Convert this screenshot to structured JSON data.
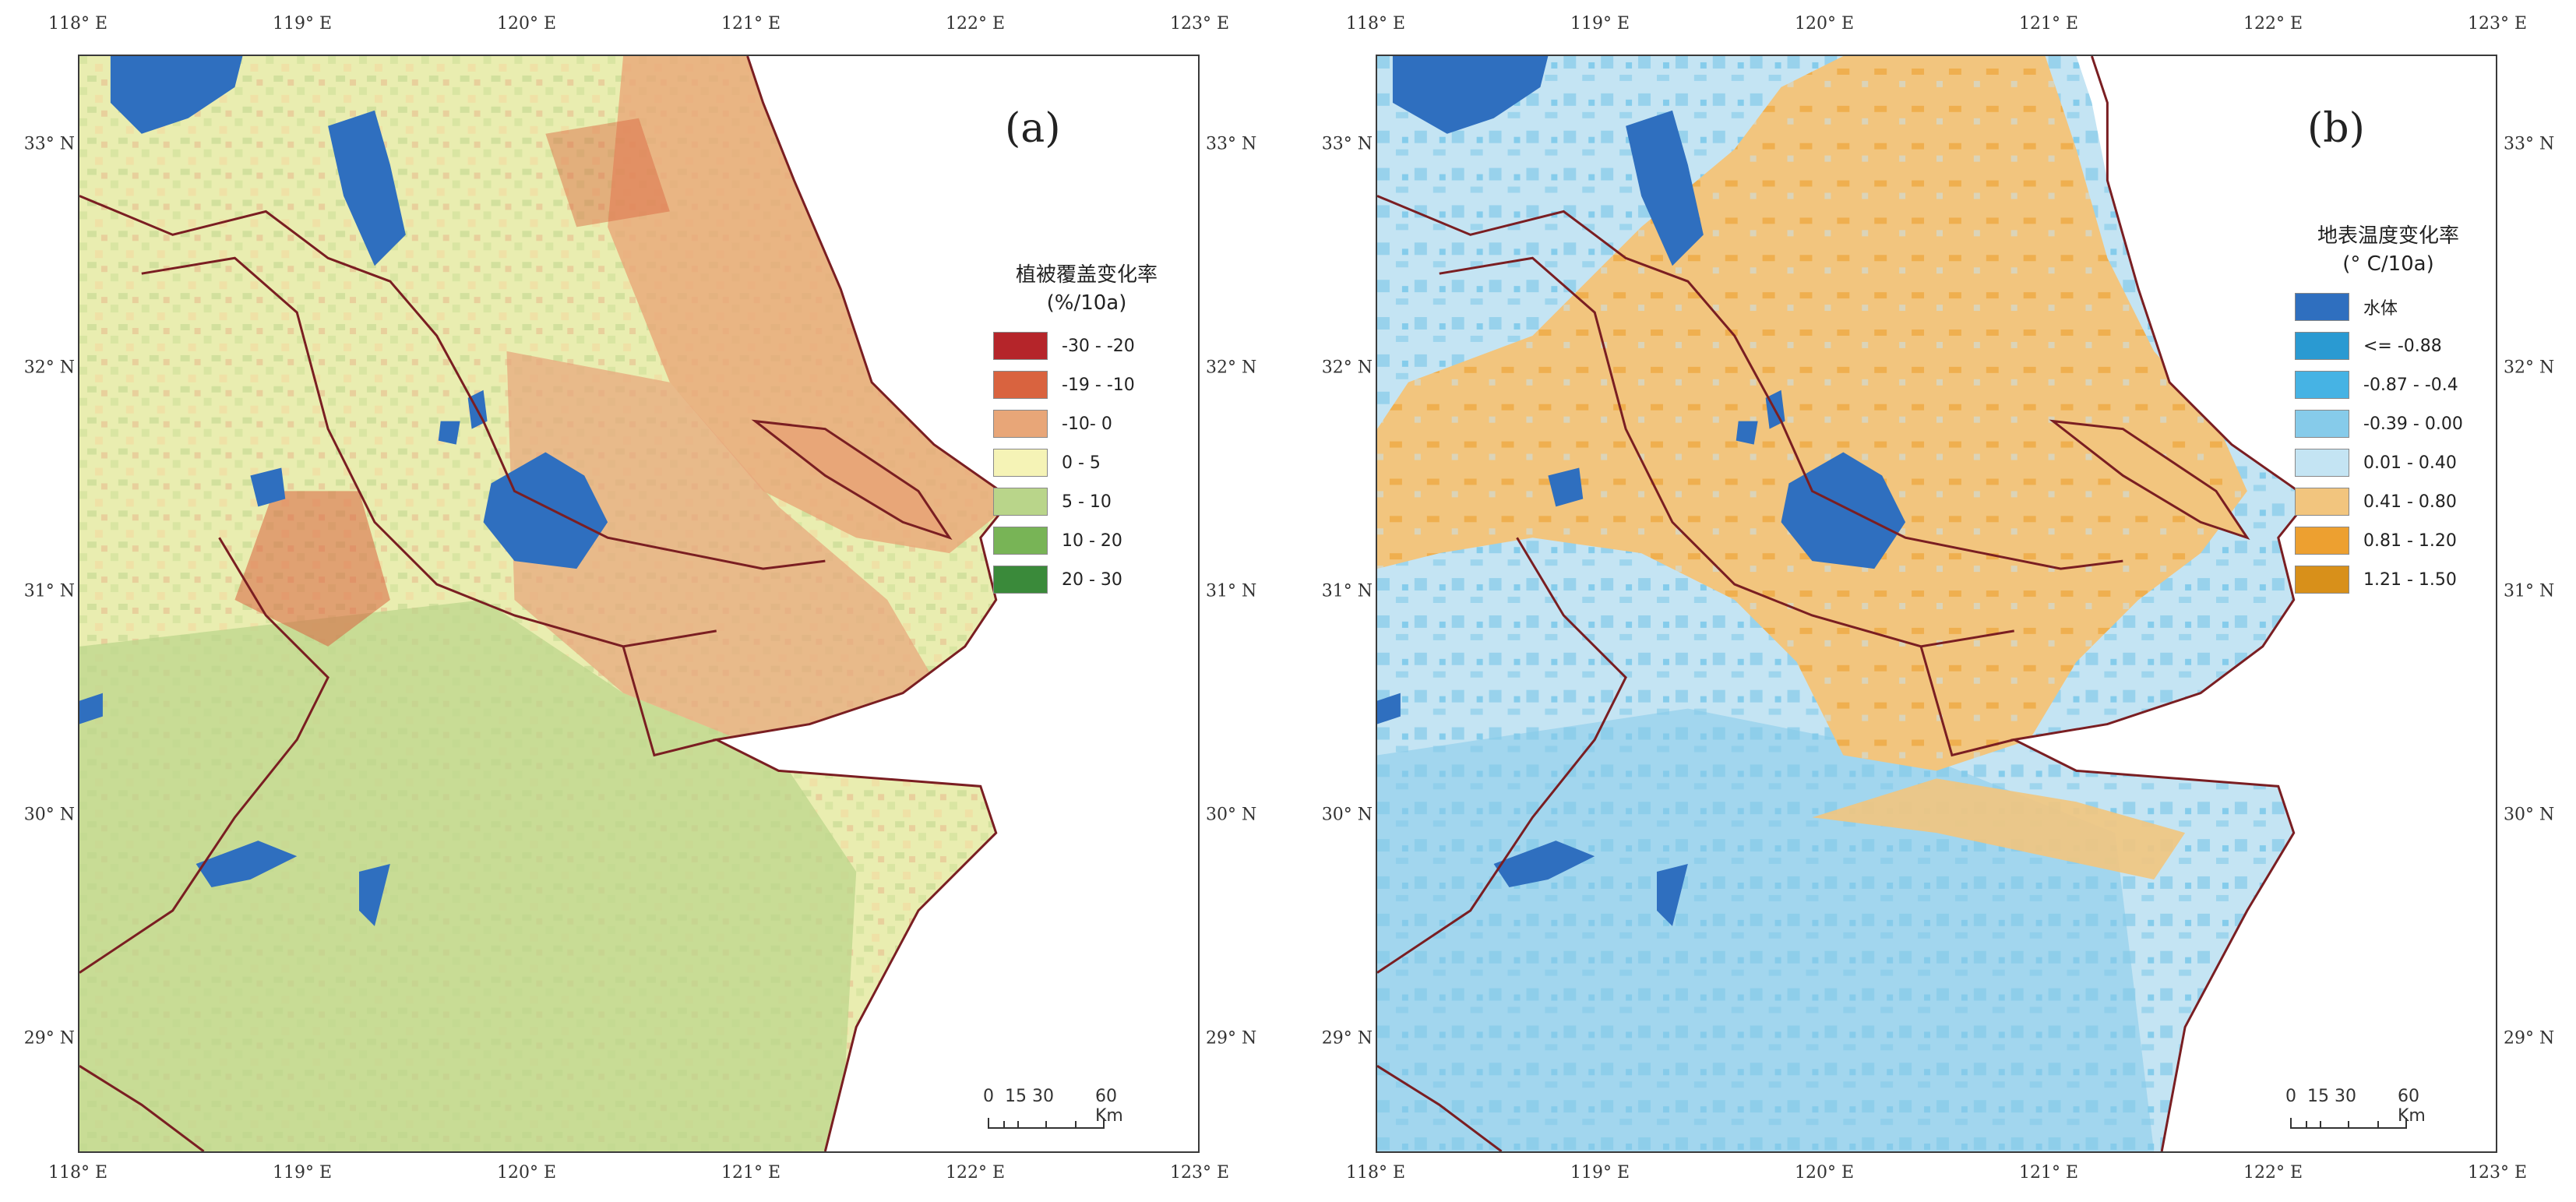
{
  "lon_labels": [
    "118° E",
    "119° E",
    "120° E",
    "121° E",
    "122° E",
    "123° E"
  ],
  "lat_labels": [
    "33° N",
    "32° N",
    "31° N",
    "30° N",
    "29° N"
  ],
  "panels": [
    {
      "label": "(a)",
      "legend": {
        "title_line1": "植被覆盖变化率",
        "title_line2": "(%/10a)",
        "items": [
          {
            "label": "-30 - -20",
            "color": "#b5252a"
          },
          {
            "label": "-19 - -10",
            "color": "#d9633f"
          },
          {
            "label": "-10- 0",
            "color": "#e8a678"
          },
          {
            "label": "0 - 5",
            "color": "#f5f3b6"
          },
          {
            "label": "5 - 10",
            "color": "#b9d58a"
          },
          {
            "label": "10 - 20",
            "color": "#78b456"
          },
          {
            "label": "20 - 30",
            "color": "#3a8a3a"
          }
        ]
      },
      "scalebar": {
        "l0": "0",
        "l1": "15 30",
        "l2": "60 Km"
      }
    },
    {
      "label": "(b)",
      "legend": {
        "title_line1": "地表温度变化率",
        "title_line2": "(° C/10a)",
        "items": [
          {
            "label": "水体",
            "color": "#2f6fbf"
          },
          {
            "label": "<= -0.88",
            "color": "#2a9ad2"
          },
          {
            "label": "-0.87 - -0.4",
            "color": "#46b3e4"
          },
          {
            "label": "-0.39 - 0.00",
            "color": "#86cbea"
          },
          {
            "label": "0.01 - 0.40",
            "color": "#c4e4f3"
          },
          {
            "label": "0.41 - 0.80",
            "color": "#f2c57e"
          },
          {
            "label": "0.81 - 1.20",
            "color": "#eda030"
          },
          {
            "label": "1.21 - 1.50",
            "color": "#d8901a"
          }
        ]
      },
      "scalebar": {
        "l0": "0",
        "l1": "15 30",
        "l2": "60 Km"
      }
    }
  ],
  "colors": {
    "water": "#2f6fbf",
    "boundary": "#7a1e22",
    "frame": "#3a3a3a"
  }
}
